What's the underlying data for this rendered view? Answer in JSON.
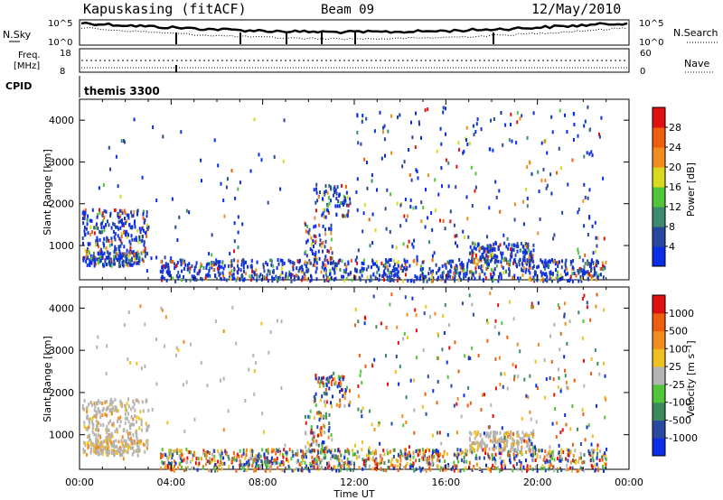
{
  "header": {
    "title": "Kapuskasing (fitACF)",
    "beam": "Beam 09",
    "date": "12/May/2010"
  },
  "noise_panel": {
    "left_label": "N.Sky",
    "right_label": "N.Search",
    "left_ticks": [
      "10^5",
      "10^0"
    ],
    "right_ticks": [
      "10^5",
      "10^0"
    ]
  },
  "freq_panel": {
    "left_label_line1": "Freq.",
    "left_label_line2": "[MHz]",
    "right_label": "Nave",
    "left_ticks": [
      "18",
      "8"
    ],
    "right_ticks": [
      "60",
      "0"
    ]
  },
  "cpid_panel": {
    "label": "CPID",
    "value": "themis 3300"
  },
  "chart_data": [
    {
      "type": "heatmap",
      "title": "Power",
      "ylabel": "Slant Range [km]",
      "xlabel": "",
      "ylim": [
        180,
        4500
      ],
      "xlim": [
        0,
        24
      ],
      "y_ticks": [
        "1000",
        "2000",
        "3000",
        "4000"
      ],
      "colorbar": {
        "label": "Power [dB]",
        "ticks": [
          "4",
          "8",
          "12",
          "16",
          "20",
          "24",
          "28"
        ],
        "colors": [
          "#0a2de6",
          "#27489c",
          "#3c8a70",
          "#52c43a",
          "#d9d91e",
          "#f08d1e",
          "#ef5d0f",
          "#e01010"
        ]
      }
    },
    {
      "type": "heatmap",
      "title": "Velocity",
      "ylabel": "Slant Range [km]",
      "xlabel": "Time UT",
      "ylim": [
        180,
        4500
      ],
      "xlim": [
        0,
        24
      ],
      "y_ticks": [
        "1000",
        "2000",
        "3000",
        "4000"
      ],
      "x_ticks": [
        "00:00",
        "04:00",
        "08:00",
        "12:00",
        "16:00",
        "20:00",
        "00:00"
      ],
      "colorbar": {
        "label": "Velocity [m s⁻¹]",
        "ticks": [
          "1000",
          "500",
          "100",
          "25",
          "-25",
          "-100",
          "-500",
          "-1000"
        ],
        "colors": [
          "#0a2de6",
          "#2a4aa0",
          "#3c8a5a",
          "#52c43a",
          "#b4b4b4",
          "#f0c020",
          "#f08d1e",
          "#ef5d0f",
          "#e01010"
        ]
      }
    }
  ]
}
